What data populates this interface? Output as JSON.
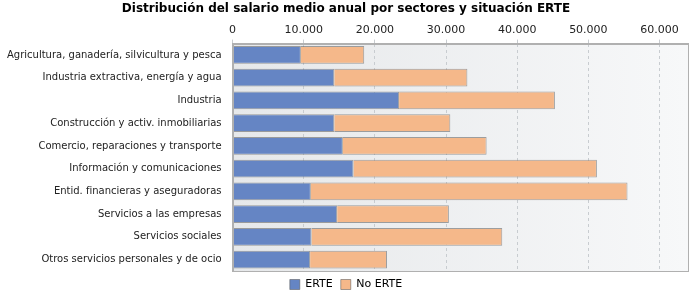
{
  "chart_data": {
    "type": "bar",
    "orientation": "horizontal",
    "stacked": true,
    "title": "Distribución del salario medio anual por sectores y situación ERTE",
    "categories": [
      "Agricultura, ganadería, silvicultura y pesca",
      "Industria extractiva, energía y agua",
      "Industria",
      "Construcción y activ. inmobiliarias",
      "Comercio, reparaciones y transporte",
      "Información y comunicaciones",
      "Entid. financieras y aseguradoras",
      "Servicios a las empresas",
      "Servicios sociales",
      "Otros servicios personales y de ocio"
    ],
    "series": [
      {
        "name": "ERTE",
        "color": "#6585c4",
        "values": [
          9600,
          14300,
          23400,
          14300,
          15500,
          17000,
          11000,
          14700,
          11100,
          10900
        ]
      },
      {
        "name": "No ERTE",
        "color": "#f5b88a",
        "values": [
          8900,
          18700,
          21900,
          16300,
          20200,
          34200,
          44500,
          15700,
          26800,
          10800
        ]
      }
    ],
    "xlim": [
      0,
      64000
    ],
    "xticks": [
      0,
      {
        "value": 10000,
        "label": "10.000"
      },
      {
        "value": 20000,
        "label": "20.000"
      },
      {
        "value": 30000,
        "label": "30.000"
      },
      {
        "value": 40000,
        "label": "40.000"
      },
      {
        "value": 50000,
        "label": "50.000"
      },
      {
        "value": 60000,
        "label": "60.000"
      }
    ],
    "grid": true,
    "legend": "bottom"
  }
}
